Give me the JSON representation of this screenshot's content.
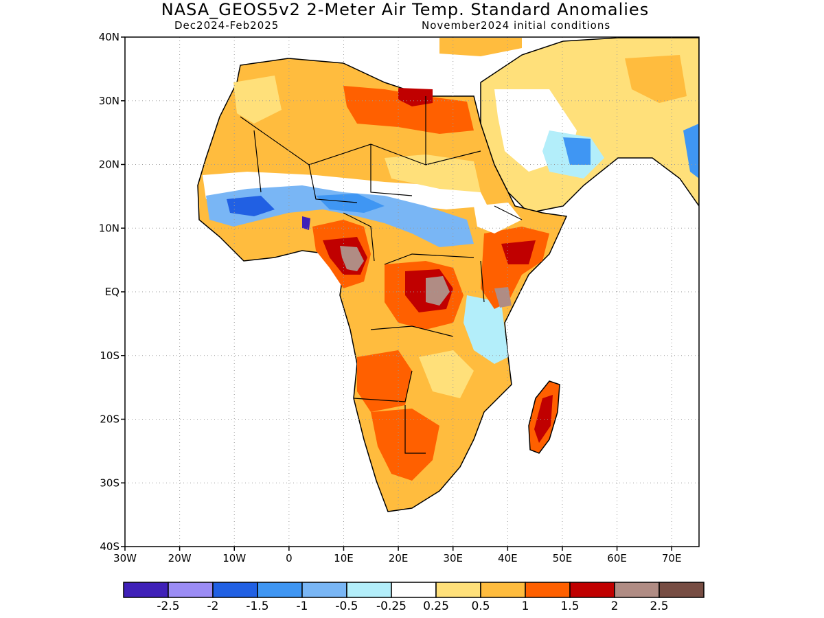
{
  "header": {
    "title": "NASA_GEOS5v2 2-Meter Air Temp. Standard Anomalies",
    "period": "Dec2024-Feb2025",
    "init": "November2024 initial conditions"
  },
  "map": {
    "lon_range": [
      -30,
      75
    ],
    "lat_range": [
      -40,
      40
    ],
    "gridlines": "dotted",
    "lat_ticks": [
      {
        "value": 40,
        "label": "40N"
      },
      {
        "value": 30,
        "label": "30N"
      },
      {
        "value": 20,
        "label": "20N"
      },
      {
        "value": 10,
        "label": "10N"
      },
      {
        "value": 0,
        "label": "EQ"
      },
      {
        "value": -10,
        "label": "10S"
      },
      {
        "value": -20,
        "label": "20S"
      },
      {
        "value": -30,
        "label": "30S"
      },
      {
        "value": -40,
        "label": "40S"
      }
    ],
    "lon_ticks": [
      {
        "value": -30,
        "label": "30W"
      },
      {
        "value": -20,
        "label": "20W"
      },
      {
        "value": -10,
        "label": "10W"
      },
      {
        "value": 0,
        "label": "0"
      },
      {
        "value": 10,
        "label": "10E"
      },
      {
        "value": 20,
        "label": "20E"
      },
      {
        "value": 30,
        "label": "30E"
      },
      {
        "value": 40,
        "label": "40E"
      },
      {
        "value": 50,
        "label": "50E"
      },
      {
        "value": 60,
        "label": "60E"
      },
      {
        "value": 70,
        "label": "70E"
      }
    ]
  },
  "colorbar": {
    "colors": [
      "#3f20b8",
      "#9b8cf5",
      "#2160e3",
      "#3f96f3",
      "#79b6f5",
      "#b3eefa",
      "#ffffff",
      "#ffe07a",
      "#ffbc3e",
      "#ff6000",
      "#c00000",
      "#b08c84",
      "#774d43"
    ],
    "labels": [
      "-2.5",
      "-2",
      "-1.5",
      "-1",
      "-0.5",
      "-0.25",
      "0.25",
      "0.5",
      "1",
      "1.5",
      "2",
      "2.5"
    ]
  }
}
